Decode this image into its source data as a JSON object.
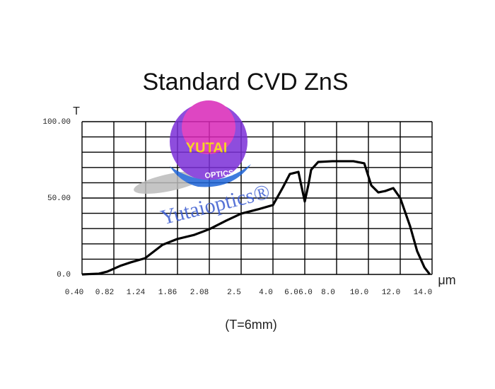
{
  "chart_data": {
    "type": "line",
    "title": "Standard   CVD   ZnS",
    "y_label": "T",
    "x_label": "μm",
    "annotation": "(T=6mm)",
    "watermark": "Yutaioptics®",
    "logo_top": "YUTAI",
    "logo_bottom": "OPTICS",
    "x_tick_labels": [
      "0.40",
      "0.82",
      "1.24",
      "1.86",
      "2.08",
      "2.5",
      "4.0",
      "6.0",
      "6.0",
      "8.0",
      "10.0",
      "12.0",
      "14.0"
    ],
    "xlim": [
      0,
      11
    ],
    "xgrid": [
      0,
      1,
      2,
      3,
      4,
      5,
      6,
      7,
      8,
      9,
      10,
      11
    ],
    "ylim": [
      0,
      100
    ],
    "yticks": [
      {
        "value": 0,
        "label": "0.0"
      },
      {
        "value": 50,
        "label": "50.00"
      },
      {
        "value": 100,
        "label": "100.00"
      }
    ],
    "ygrid": [
      0,
      10,
      20,
      30,
      40,
      50,
      60,
      70,
      80,
      90,
      100
    ],
    "series": [
      {
        "color": "#000000",
        "x": [
          0,
          0.53,
          0.8,
          1.2,
          1.53,
          1.98,
          2.53,
          2.98,
          3.53,
          4,
          4.53,
          5,
          5.53,
          6,
          6.31,
          6.53,
          6.8,
          6.89,
          7,
          7.11,
          7.2,
          7.42,
          7.87,
          8.53,
          8.87,
          9.09,
          9.31,
          9.53,
          9.78,
          10,
          10.31,
          10.53,
          10.76,
          10.93
        ],
        "values": [
          0,
          0.5,
          1.9,
          5.6,
          7.9,
          10.6,
          19.4,
          23.1,
          25.9,
          29.6,
          35.2,
          39.8,
          42.6,
          45.4,
          56.9,
          65.7,
          67.1,
          58.3,
          47.7,
          58.3,
          68.5,
          73.6,
          74.1,
          74.1,
          72.7,
          58.3,
          53.7,
          54.6,
          56.5,
          50,
          31.5,
          15.3,
          4.6,
          0
        ]
      }
    ]
  }
}
